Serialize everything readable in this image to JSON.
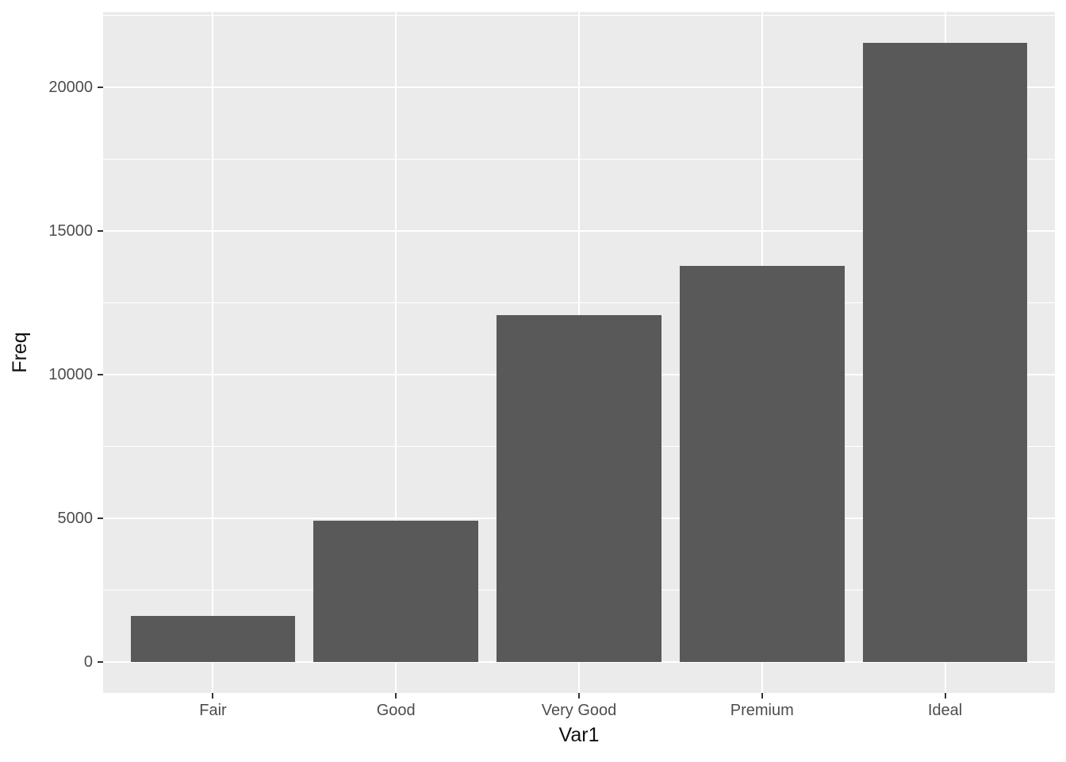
{
  "chart_data": {
    "type": "bar",
    "title": "",
    "xlabel": "Var1",
    "ylabel": "Freq",
    "categories": [
      "Fair",
      "Good",
      "Very Good",
      "Premium",
      "Ideal"
    ],
    "values": [
      1610,
      4906,
      12082,
      13791,
      21551
    ],
    "y_major_ticks": [
      0,
      5000,
      10000,
      15000,
      20000
    ],
    "y_minor_ticks": [
      2500,
      7500,
      12500,
      17500,
      22500
    ],
    "ylim": [
      -1078,
      22629
    ],
    "grid": "on",
    "legend": "none",
    "style": {
      "page_bg": "#FFFFFF",
      "panel_bg": "#EBEBEB",
      "bar_fill": "#595959",
      "grid_color": "#FFFFFF",
      "tick_label_color": "#4D4D4D",
      "axis_title_color": "#111111",
      "tick_mark_color": "#333333"
    }
  }
}
